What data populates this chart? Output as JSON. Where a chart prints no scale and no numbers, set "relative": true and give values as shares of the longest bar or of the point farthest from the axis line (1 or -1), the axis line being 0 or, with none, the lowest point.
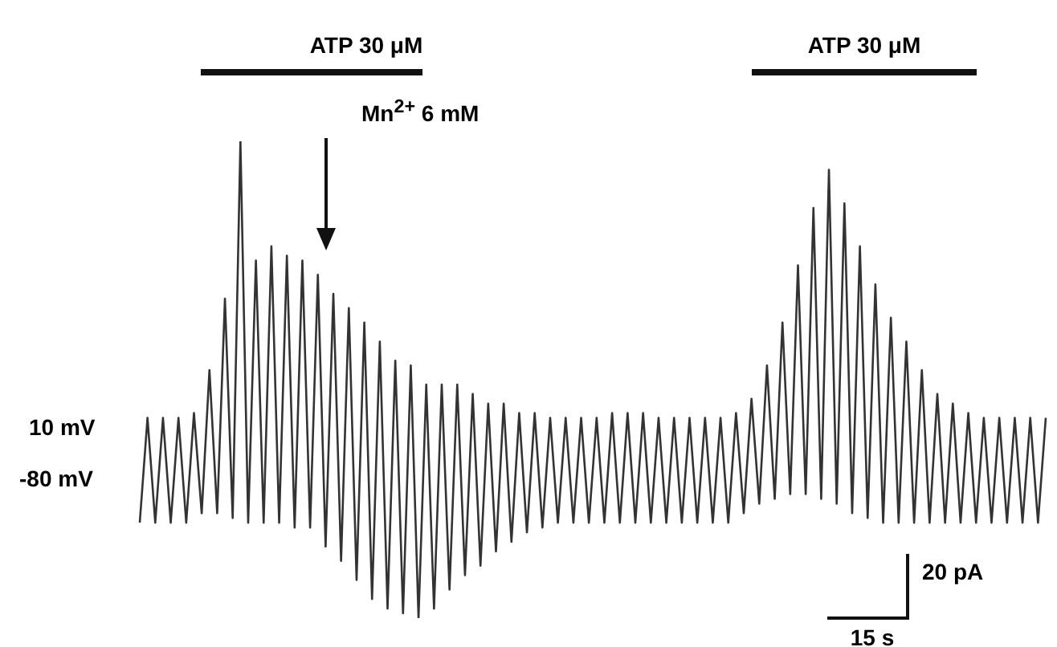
{
  "chart_data": {
    "type": "line",
    "relative": true,
    "color": "#333333",
    "marker": "none",
    "categories": [
      null,
      null,
      null,
      null,
      null,
      null,
      null,
      null,
      null,
      null,
      null,
      null,
      null,
      null,
      null,
      null,
      null,
      null,
      null,
      null,
      null,
      null,
      null,
      null,
      null,
      null,
      null,
      null,
      null,
      null,
      null,
      null,
      null,
      null,
      null,
      null,
      null,
      null,
      null,
      null,
      null,
      null,
      null,
      null,
      null,
      null,
      null,
      null,
      null,
      null,
      null,
      null,
      null,
      null,
      null,
      null,
      null,
      null,
      null,
      null,
      null,
      null,
      null,
      null,
      null,
      null,
      null,
      null,
      null,
      null,
      null,
      null,
      null,
      null,
      null,
      null,
      null,
      null,
      null,
      null,
      null,
      null,
      null,
      null,
      null,
      null,
      null,
      null,
      null,
      null,
      null,
      null,
      null,
      null,
      null,
      null,
      null,
      null,
      null,
      null,
      null,
      null,
      null,
      null,
      null,
      null,
      null,
      null,
      null,
      null,
      null,
      null,
      null,
      null,
      null,
      null,
      null,
      null
    ],
    "values": [
      0.2,
      0.42,
      0.2,
      0.42,
      0.2,
      0.42,
      0.2,
      0.43,
      0.22,
      0.52,
      0.22,
      0.67,
      0.21,
      1.0,
      0.2,
      0.75,
      0.2,
      0.78,
      0.2,
      0.76,
      0.19,
      0.75,
      0.19,
      0.72,
      0.15,
      0.68,
      0.12,
      0.65,
      0.08,
      0.62,
      0.04,
      0.58,
      0.02,
      0.54,
      0.01,
      0.53,
      0,
      0.49,
      0.02,
      0.49,
      0.06,
      0.49,
      0.09,
      0.47,
      0.11,
      0.45,
      0.14,
      0.45,
      0.16,
      0.43,
      0.18,
      0.43,
      0.19,
      0.42,
      0.2,
      0.42,
      0.2,
      0.42,
      0.2,
      0.42,
      0.2,
      0.43,
      0.2,
      0.43,
      0.2,
      0.43,
      0.2,
      0.42,
      0.2,
      0.42,
      0.2,
      0.42,
      0.2,
      0.42,
      0.2,
      0.42,
      0.2,
      0.43,
      0.22,
      0.46,
      0.24,
      0.53,
      0.25,
      0.62,
      0.26,
      0.74,
      0.26,
      0.86,
      0.25,
      0.94,
      0.24,
      0.87,
      0.22,
      0.78,
      0.21,
      0.7,
      0.2,
      0.63,
      0.2,
      0.58,
      0.2,
      0.52,
      0.2,
      0.47,
      0.2,
      0.45,
      0.2,
      0.43,
      0.2,
      0.42,
      0.2,
      0.42,
      0.2,
      0.42,
      0.2,
      0.42,
      0.2,
      0.42
    ],
    "annotations": [
      "ATP 30 μM",
      "ATP 30 μM",
      "Mn$^{2+}$ 6 mM",
      "10 mV",
      "-80 mV",
      "20 pA",
      "15 s"
    ]
  }
}
